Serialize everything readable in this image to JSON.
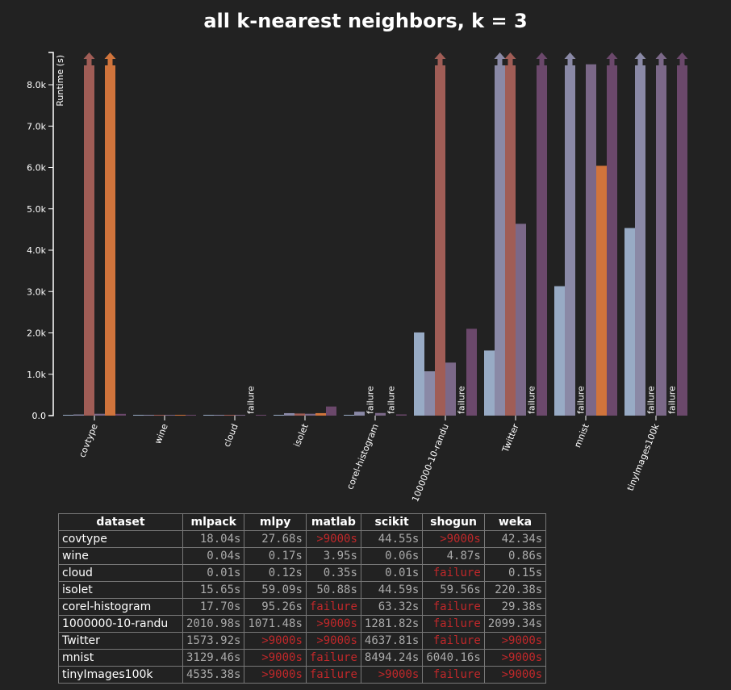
{
  "chart_data": {
    "type": "bar",
    "title": "all k-nearest neighbors, k = 3",
    "ylabel": "Runtime (s)",
    "xlabel": "",
    "ylim": [
      0,
      8800
    ],
    "yticks": [
      "0.0",
      "1.0k",
      "2.0k",
      "3.0k",
      "4.0k",
      "5.0k",
      "6.0k",
      "7.0k",
      "8.0k"
    ],
    "grid": false,
    "categories": [
      "covtype",
      "wine",
      "cloud",
      "isolet",
      "corel-histogram",
      "1000000-10-randu",
      "Twitter",
      "mnist",
      "tinyImages100k"
    ],
    "series": [
      {
        "name": "mlpack",
        "color": "#98abc5",
        "values": [
          "18.04s",
          "0.04s",
          "0.01s",
          "15.65s",
          "17.70s",
          "2010.98s",
          "1573.92s",
          "3129.46s",
          "4535.38s"
        ]
      },
      {
        "name": "mlpy",
        "color": "#8a89a6",
        "values": [
          "27.68s",
          "0.17s",
          "0.12s",
          "59.09s",
          "95.26s",
          "1071.48s",
          ">9000s",
          ">9000s",
          ">9000s"
        ]
      },
      {
        "name": "matlab",
        "color": "#a05d56",
        "values": [
          ">9000s",
          "3.95s",
          "0.35s",
          "50.88s",
          "failure",
          ">9000s",
          ">9000s",
          "failure",
          "failure"
        ]
      },
      {
        "name": "scikit",
        "color": "#7b6888",
        "values": [
          "44.55s",
          "0.06s",
          "0.01s",
          "44.59s",
          "63.32s",
          "1281.82s",
          "4637.81s",
          "8494.24s",
          ">9000s"
        ]
      },
      {
        "name": "shogun",
        "color": "#d0743c",
        "values": [
          ">9000s",
          "4.87s",
          "failure",
          "59.56s",
          "failure",
          "failure",
          "failure",
          "6040.16s",
          "failure"
        ]
      },
      {
        "name": "weka",
        "color": "#6b486b",
        "values": [
          "42.34s",
          "0.86s",
          "0.15s",
          "220.38s",
          "29.38s",
          "2099.34s",
          ">9000s",
          ">9000s",
          ">9000s"
        ]
      }
    ],
    "failure_label": "failure",
    "timeout_label": ">9000s"
  },
  "table": {
    "header_first": "dataset",
    "failure_color": "#c0282a"
  }
}
